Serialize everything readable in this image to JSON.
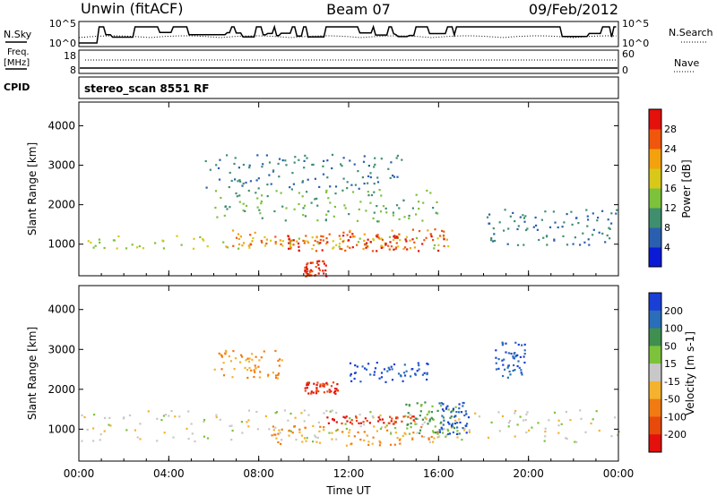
{
  "header": {
    "station": "Unwin (fitACF)",
    "beam": "Beam 07",
    "date": "09/Feb/2012"
  },
  "top_panels": {
    "nsky_label": "N.Sky",
    "nsearch_label": "N.Search",
    "noise_ticks_left": [
      "10^5",
      "10^0"
    ],
    "noise_ticks_right": [
      "10^5",
      "10^0"
    ],
    "freq_label_1": "Freq.",
    "freq_label_2": "[MHz]",
    "freq_ticks": [
      "18",
      "8"
    ],
    "nave_ticks": [
      "60",
      "0"
    ],
    "nave_label": "Nave",
    "cpid_label": "CPID",
    "cpid_value": "stereo_scan 8551 RF"
  },
  "chart_data": [
    {
      "type": "heatmap",
      "name": "power",
      "xlabel": "Time UT",
      "ylabel": "Slant Range [km]",
      "xlim": [
        0,
        24
      ],
      "ylim": [
        200,
        4600
      ],
      "x_ticks": [
        "00:00",
        "04:00",
        "08:00",
        "12:00",
        "16:00",
        "20:00",
        "00:00"
      ],
      "y_ticks": [
        1000,
        2000,
        3000,
        4000
      ],
      "colorbar_label": "Power [dB]",
      "colorbar_ticks": [
        4,
        8,
        12,
        16,
        20,
        24,
        28
      ],
      "colorbar_colors": [
        "#0a1ad6",
        "#2a5fb0",
        "#3f8f6f",
        "#7cc23a",
        "#d8c81a",
        "#f4a10e",
        "#f0560c",
        "#e3100c"
      ],
      "regions": [
        {
          "t0": 0.0,
          "t1": 16.5,
          "r0": 900,
          "r1": 1250,
          "level": 16
        },
        {
          "t0": 6.5,
          "t1": 16.5,
          "r0": 900,
          "r1": 1400,
          "level": 24
        },
        {
          "t0": 9.0,
          "t1": 16.5,
          "r0": 850,
          "r1": 1300,
          "level": 28
        },
        {
          "t0": 6.0,
          "t1": 16.0,
          "r0": 1600,
          "r1": 2400,
          "level": 12
        },
        {
          "t0": 5.5,
          "t1": 14.5,
          "r0": 2400,
          "r1": 3300,
          "level": 8
        },
        {
          "t0": 18.0,
          "t1": 24.0,
          "r0": 1000,
          "r1": 1900,
          "level": 8
        },
        {
          "t0": 10.0,
          "t1": 11.0,
          "r0": 200,
          "r1": 600,
          "level": 28
        }
      ]
    },
    {
      "type": "heatmap",
      "name": "velocity",
      "xlabel": "Time UT",
      "ylabel": "Slant Range [km]",
      "xlim": [
        0,
        24
      ],
      "ylim": [
        200,
        4600
      ],
      "x_ticks": [
        "00:00",
        "04:00",
        "08:00",
        "12:00",
        "16:00",
        "20:00",
        "00:00"
      ],
      "y_ticks": [
        1000,
        2000,
        3000,
        4000
      ],
      "colorbar_label": "Velocity [m s-1]",
      "colorbar_ticks": [
        200,
        100,
        50,
        15,
        -15,
        -50,
        -100,
        -200
      ],
      "colorbar_colors": [
        "#1a3fd6",
        "#2a6db8",
        "#3f8f4f",
        "#7cc23a",
        "#c8c8c8",
        "#f4b22e",
        "#f27a12",
        "#e84a0c",
        "#e3100c"
      ],
      "regions": [
        {
          "t0": 0.0,
          "t1": 24.0,
          "r0": 700,
          "r1": 1500,
          "level": 0
        },
        {
          "t0": 8.5,
          "t1": 16.0,
          "r0": 600,
          "r1": 1100,
          "level": -50
        },
        {
          "t0": 11.0,
          "t1": 15.0,
          "r0": 1150,
          "r1": 1350,
          "level": -200
        },
        {
          "t0": 14.5,
          "t1": 17.0,
          "r0": 900,
          "r1": 1700,
          "level": 50
        },
        {
          "t0": 16.0,
          "t1": 17.3,
          "r0": 900,
          "r1": 1700,
          "level": 200
        },
        {
          "t0": 12.0,
          "t1": 15.5,
          "r0": 2200,
          "r1": 2700,
          "level": 200
        },
        {
          "t0": 10.0,
          "t1": 11.5,
          "r0": 1900,
          "r1": 2200,
          "level": -200
        },
        {
          "t0": 6.0,
          "t1": 9.0,
          "r0": 2300,
          "r1": 3000,
          "level": -50
        },
        {
          "t0": 18.5,
          "t1": 19.8,
          "r0": 2300,
          "r1": 3200,
          "level": 200
        }
      ]
    }
  ]
}
